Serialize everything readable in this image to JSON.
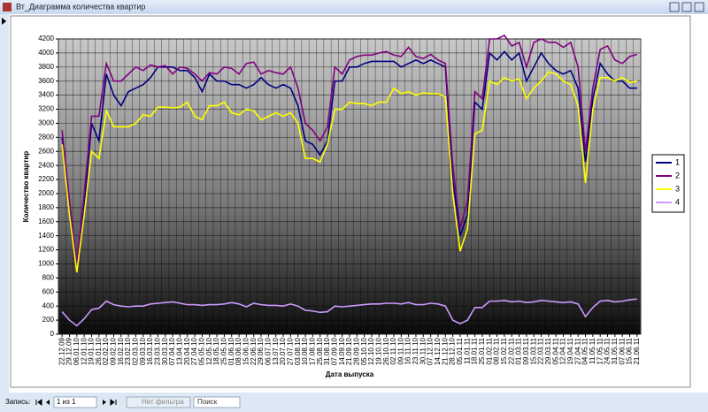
{
  "window": {
    "title": "Вт_Диаграмма количества квартир"
  },
  "navigation": {
    "record_label": "Запись:",
    "record_position": "1 из 1",
    "filter": "Нет фильтра",
    "search": "Поиск"
  },
  "chart_data": {
    "type": "line",
    "xlabel": "Дата выпуска",
    "ylabel": "Количество квартир",
    "categories": [
      "22.12.09",
      "29.12.09",
      "06.01.10",
      "12.01.10",
      "19.01.10",
      "26.01.10",
      "02.02.10",
      "09.02.10",
      "16.02.10",
      "23.02.10",
      "02.03.10",
      "09.03.10",
      "16.03.10",
      "23.03.10",
      "30.03.10",
      "07.04.10",
      "13.04.10",
      "20.04.10",
      "27.04.10",
      "05.05.10",
      "12.05.10",
      "18.05.10",
      "25.05.10",
      "01.06.10",
      "08.06.10",
      "15.06.10",
      "22.06.10",
      "29.06.10",
      "06.07.10",
      "13.07.10",
      "20.07.10",
      "27.07.10",
      "03.08.10",
      "10.08.10",
      "17.08.10",
      "25.08.10",
      "31.08.10",
      "07.09.10",
      "14.09.10",
      "21.09.10",
      "28.09.10",
      "05.10.10",
      "12.10.10",
      "19.10.10",
      "26.10.10",
      "02.11.10",
      "09.11.10",
      "16.11.10",
      "23.11.10",
      "30.11.10",
      "07.12.10",
      "14.12.10",
      "21.12.10",
      "28.12.10",
      "05.01.11",
      "11.01.11",
      "18.01.11",
      "25.01.11",
      "01.02.11",
      "08.02.11",
      "15.02.11",
      "22.02.11",
      "01.03.11",
      "09.03.11",
      "15.03.11",
      "22.03.11",
      "29.03.11",
      "05.04.11",
      "12.04.11",
      "19.04.11",
      "27.04.11",
      "04.05.11",
      "11.05.11",
      "17.05.11",
      "24.05.11",
      "31.05.11",
      "07.06.11",
      "15.06.11",
      "21.06.11"
    ],
    "series": [
      {
        "name": "1",
        "color": "#000080",
        "values": [
          2800,
          1800,
          950,
          1800,
          3000,
          2750,
          3700,
          3400,
          3250,
          3450,
          3500,
          3550,
          3650,
          3800,
          3800,
          3800,
          3750,
          3750,
          3650,
          3450,
          3700,
          3600,
          3600,
          3550,
          3550,
          3500,
          3550,
          3650,
          3550,
          3500,
          3550,
          3500,
          3250,
          2750,
          2700,
          2550,
          2750,
          3600,
          3600,
          3800,
          3800,
          3850,
          3880,
          3880,
          3880,
          3880,
          3800,
          3850,
          3900,
          3850,
          3900,
          3850,
          3800,
          2200,
          1400,
          1700,
          3300,
          3200,
          4000,
          3900,
          4020,
          3900,
          4000,
          3600,
          3800,
          4000,
          3850,
          3750,
          3700,
          3750,
          3500,
          2450,
          3350,
          3850,
          3700,
          3600,
          3600,
          3500,
          3500
        ]
      },
      {
        "name": "2",
        "color": "#800080",
        "values": [
          2900,
          1900,
          1000,
          2000,
          3100,
          3100,
          3850,
          3600,
          3600,
          3700,
          3800,
          3750,
          3830,
          3800,
          3820,
          3700,
          3800,
          3780,
          3700,
          3600,
          3720,
          3700,
          3800,
          3780,
          3700,
          3850,
          3870,
          3700,
          3750,
          3720,
          3700,
          3800,
          3500,
          3000,
          2900,
          2750,
          2950,
          3800,
          3700,
          3900,
          3950,
          3970,
          3970,
          4000,
          4020,
          3970,
          3950,
          4080,
          3950,
          3920,
          3980,
          3900,
          3850,
          2400,
          1500,
          1900,
          3450,
          3350,
          4200,
          4200,
          4250,
          4100,
          4150,
          3800,
          4150,
          4200,
          4150,
          4150,
          4080,
          4150,
          3800,
          2600,
          3500,
          4050,
          4100,
          3900,
          3850,
          3950,
          3980
        ]
      },
      {
        "name": "3",
        "color": "#ffff00",
        "values": [
          2700,
          1700,
          880,
          1700,
          2600,
          2500,
          3180,
          2950,
          2950,
          2950,
          3000,
          3120,
          3100,
          3230,
          3230,
          3220,
          3230,
          3300,
          3100,
          3050,
          3250,
          3250,
          3300,
          3150,
          3120,
          3200,
          3180,
          3050,
          3100,
          3150,
          3100,
          3150,
          3000,
          2500,
          2500,
          2450,
          2700,
          3200,
          3200,
          3300,
          3280,
          3280,
          3250,
          3300,
          3300,
          3500,
          3420,
          3450,
          3400,
          3430,
          3420,
          3420,
          3380,
          2000,
          1180,
          1500,
          2850,
          2900,
          3600,
          3550,
          3650,
          3600,
          3630,
          3350,
          3500,
          3600,
          3730,
          3700,
          3600,
          3550,
          3250,
          2150,
          3200,
          3650,
          3650,
          3600,
          3650,
          3580,
          3600
        ]
      },
      {
        "name": "4",
        "color": "#cc99ff",
        "values": [
          320,
          200,
          120,
          220,
          350,
          370,
          470,
          420,
          400,
          390,
          400,
          400,
          430,
          440,
          450,
          460,
          440,
          420,
          420,
          410,
          420,
          420,
          430,
          450,
          430,
          390,
          440,
          420,
          410,
          410,
          400,
          430,
          400,
          340,
          330,
          310,
          320,
          400,
          390,
          400,
          410,
          420,
          430,
          430,
          440,
          440,
          430,
          450,
          420,
          420,
          440,
          430,
          400,
          200,
          150,
          200,
          380,
          380,
          470,
          470,
          480,
          460,
          470,
          450,
          460,
          480,
          470,
          460,
          450,
          460,
          430,
          250,
          380,
          470,
          480,
          460,
          470,
          490,
          500
        ]
      }
    ],
    "ylim": [
      0,
      4200
    ],
    "yticks": [
      0,
      200,
      400,
      600,
      800,
      1000,
      1200,
      1400,
      1600,
      1800,
      2000,
      2200,
      2400,
      2600,
      2800,
      3000,
      3200,
      3400,
      3600,
      3800,
      4000,
      4200
    ],
    "grid": true,
    "legend": "right"
  }
}
